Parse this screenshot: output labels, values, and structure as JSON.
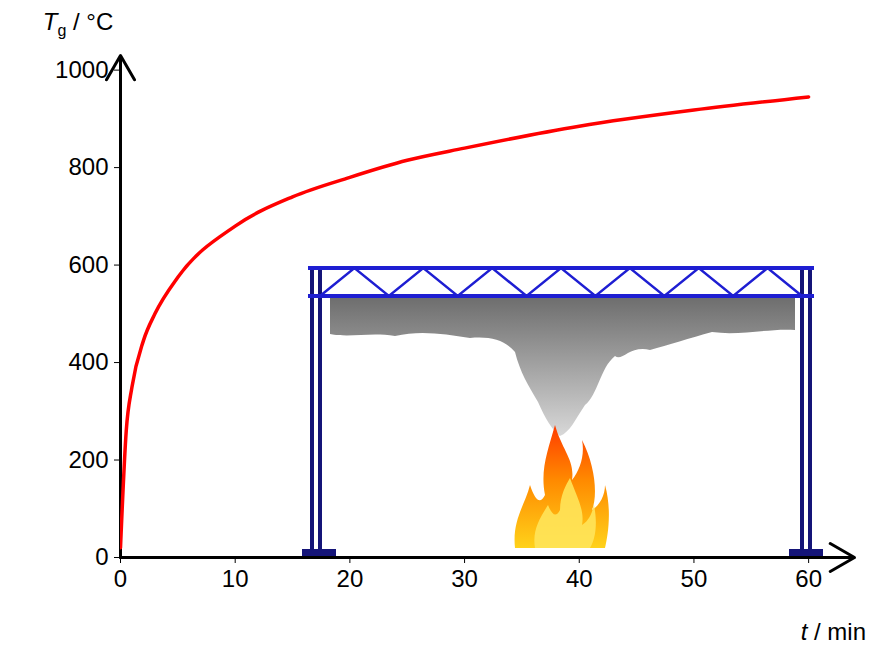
{
  "chart_data": {
    "type": "line",
    "xlabel": "t / min",
    "ylabel": "Tg / °C",
    "x": [
      0,
      0.5,
      1,
      2,
      3,
      5,
      10,
      15,
      20,
      25,
      30,
      40,
      50,
      60
    ],
    "values": [
      20,
      260,
      350,
      445,
      500,
      575,
      680,
      740,
      780,
      815,
      840,
      885,
      918,
      945
    ],
    "color": "#ff0000",
    "xlim": [
      0,
      64
    ],
    "ylim": [
      0,
      1030
    ],
    "xticks": [
      0,
      10,
      20,
      30,
      40,
      50,
      60
    ],
    "yticks": [
      0,
      200,
      400,
      600,
      800,
      1000
    ],
    "grid": false
  }
}
